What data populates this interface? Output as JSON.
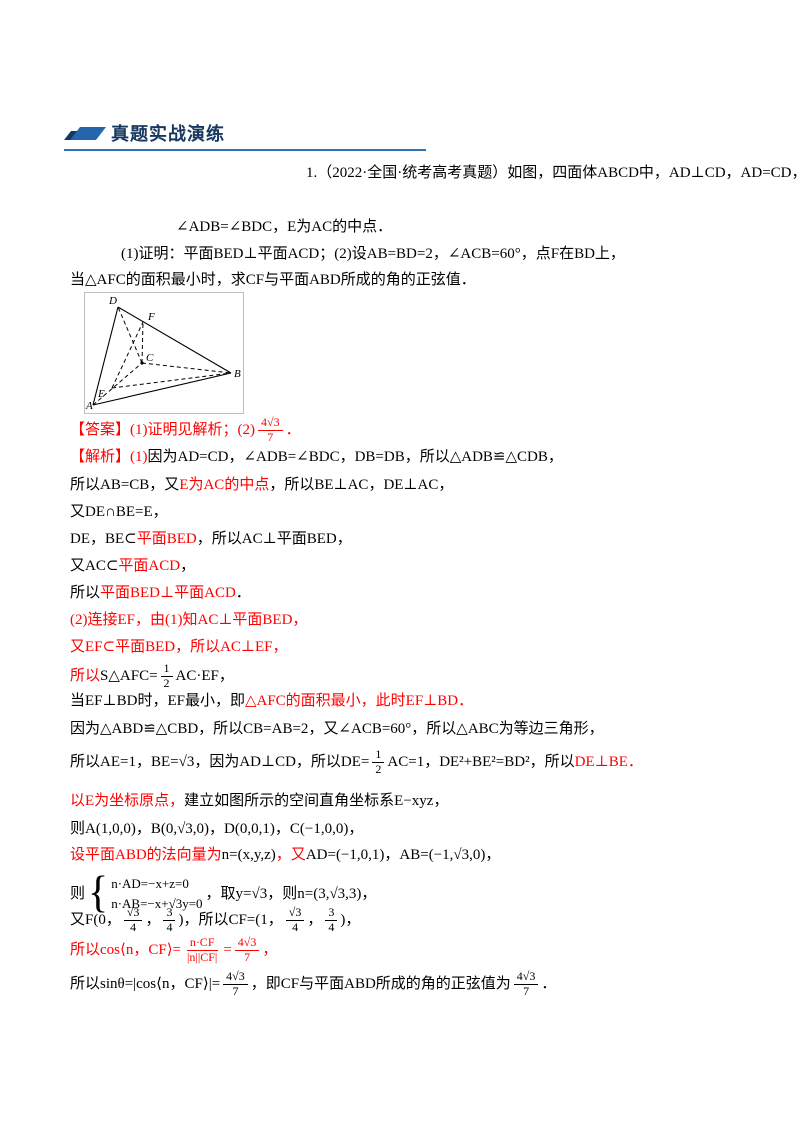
{
  "header": {
    "title": "真题实战演练"
  },
  "colors": {
    "accent": "#2e74b5",
    "title": "#17375e",
    "red": "#ff0000",
    "black": "#000000"
  },
  "problem": {
    "lines": [
      {
        "segments": [
          {
            "type": "text",
            "color": "black",
            "text": "1.（2022·全国·统考高考真题）如图，四面体ABCD中，AD⊥CD，AD=CD，"
          }
        ]
      },
      {
        "segments": [
          {
            "type": "text",
            "color": "black",
            "text": "∠ADB=∠BDC，E为AC的中点．"
          }
        ]
      },
      {
        "segments": [
          {
            "type": "text",
            "color": "black",
            "text": "(1)证明：平面BED⊥平面ACD；(2)设AB=BD=2，∠ACB=60°，点F在BD上，"
          }
        ]
      },
      {
        "segments": [
          {
            "type": "text",
            "color": "black",
            "text": "当△AFC的面积最小时，求CF与平面ABD所成的角的正弦值．"
          }
        ]
      }
    ]
  },
  "figure": {
    "labels": {
      "a": "A",
      "b": "B",
      "c": "C",
      "d": "D",
      "e": "E",
      "f": "F"
    }
  },
  "solution": {
    "lines": [
      {
        "segments": [
          {
            "type": "text",
            "color": "red",
            "text": "【答案】(1)证明见解析；(2)"
          },
          {
            "type": "frac",
            "color": "red",
            "num": "4√3",
            "den": "7"
          },
          {
            "type": "text",
            "color": "red",
            "text": "．"
          }
        ]
      },
      {
        "segments": [
          {
            "type": "text",
            "color": "red",
            "text": "【解析】(1)"
          },
          {
            "type": "text",
            "color": "black",
            "text": "因为AD=CD，∠ADB=∠BDC，DB=DB，所以△ADB≌△CDB，"
          }
        ]
      },
      {
        "segments": [
          {
            "type": "text",
            "color": "black",
            "text": "所以AB=CB，又"
          },
          {
            "type": "text",
            "color": "red",
            "text": "E为AC的中点"
          },
          {
            "type": "text",
            "color": "black",
            "text": "，所以BE⊥AC，DE⊥AC，"
          }
        ]
      },
      {
        "segments": [
          {
            "type": "text",
            "color": "black",
            "text": "又DE∩BE=E，"
          }
        ]
      },
      {
        "segments": [
          {
            "type": "text",
            "color": "black",
            "text": "DE，BE⊂"
          },
          {
            "type": "text",
            "color": "red",
            "text": "平面BED"
          },
          {
            "type": "text",
            "color": "black",
            "text": "，所以AC⊥平面BED，"
          }
        ]
      },
      {
        "segments": [
          {
            "type": "text",
            "color": "black",
            "text": "又AC⊂"
          },
          {
            "type": "text",
            "color": "red",
            "text": "平面ACD"
          },
          {
            "type": "text",
            "color": "black",
            "text": "，"
          }
        ]
      },
      {
        "segments": [
          {
            "type": "text",
            "color": "black",
            "text": "所以"
          },
          {
            "type": "text",
            "color": "red",
            "text": "平面BED⊥平面ACD"
          },
          {
            "type": "text",
            "color": "black",
            "text": "．"
          }
        ]
      },
      {
        "segments": [
          {
            "type": "text",
            "color": "red",
            "text": "(2)连接EF，由(1)知AC⊥平面BED，"
          }
        ]
      },
      {
        "segments": [
          {
            "type": "text",
            "color": "red",
            "text": "又EF⊂平面BED，所以AC⊥EF，"
          }
        ]
      },
      {
        "segments": [
          {
            "type": "text",
            "color": "red",
            "text": "所以"
          },
          {
            "type": "text",
            "color": "black",
            "text": "S△AFC="
          },
          {
            "type": "frac",
            "color": "black",
            "num": "1",
            "den": "2"
          },
          {
            "type": "text",
            "color": "black",
            "text": "AC·EF，"
          }
        ]
      },
      {
        "segments": [
          {
            "type": "text",
            "color": "black",
            "text": "当EF⊥BD时，EF最小，即"
          },
          {
            "type": "text",
            "color": "red",
            "text": "△AFC的面积最小，此时EF⊥BD．"
          }
        ]
      },
      {
        "segments": [
          {
            "type": "text",
            "color": "black",
            "text": "因为△ABD≌△CBD，所以CB=AB=2，又∠ACB=60°，所以△ABC为等边三角形，"
          }
        ]
      },
      {
        "segments": [
          {
            "type": "text",
            "color": "black",
            "text": "所以AE=1，BE=√3，因为AD⊥CD，所以DE="
          },
          {
            "type": "frac",
            "color": "black",
            "num": "1",
            "den": "2"
          },
          {
            "type": "text",
            "color": "black",
            "text": "AC=1，DE²+BE²=BD²，所以"
          },
          {
            "type": "text",
            "color": "red",
            "text": "DE⊥BE．"
          }
        ]
      },
      {
        "segments": [
          {
            "type": "text",
            "color": "red",
            "text": "以E为坐标原点，"
          },
          {
            "type": "text",
            "color": "black",
            "text": "建立如图所示的空间直角坐标系E−xyz，"
          }
        ]
      },
      {
        "segments": [
          {
            "type": "text",
            "color": "black",
            "text": "则A(1,0,0)，B(0,√3,0)，D(0,0,1)，C(−1,0,0)，"
          }
        ]
      },
      {
        "segments": [
          {
            "type": "text",
            "color": "red",
            "text": "设平面ABD的法向量为"
          },
          {
            "type": "text",
            "color": "black",
            "text": "n=(x,y,z)"
          },
          {
            "type": "text",
            "color": "red",
            "text": "，又"
          },
          {
            "type": "text",
            "color": "black",
            "text": "AD=(−1,0,1)，AB=(−1,√3,0)，"
          }
        ]
      },
      {
        "segments": [
          {
            "type": "text",
            "color": "black",
            "text": "则"
          },
          {
            "type": "cases",
            "color": "black",
            "rows": [
              "n·AD=−x+z=0",
              "n·AB=−x+√3y=0"
            ]
          },
          {
            "type": "text",
            "color": "black",
            "text": "，取y=√3，则n=(3,√3,3)，"
          }
        ]
      },
      {
        "segments": [
          {
            "type": "text",
            "color": "black",
            "text": "又F(0，"
          },
          {
            "type": "frac",
            "color": "black",
            "num": "√3",
            "den": "4"
          },
          {
            "type": "text",
            "color": "black",
            "text": "，"
          },
          {
            "type": "frac",
            "color": "black",
            "num": "3",
            "den": "4"
          },
          {
            "type": "text",
            "color": "black",
            "text": ")，所以CF=(1，"
          },
          {
            "type": "frac",
            "color": "black",
            "num": "√3",
            "den": "4"
          },
          {
            "type": "text",
            "color": "black",
            "text": "，"
          },
          {
            "type": "frac",
            "color": "black",
            "num": "3",
            "den": "4"
          },
          {
            "type": "text",
            "color": "black",
            "text": ")，"
          }
        ]
      },
      {
        "segments": [
          {
            "type": "text",
            "color": "red",
            "text": "所以cos⟨n，CF⟩="
          },
          {
            "type": "frac",
            "color": "red",
            "num": "n·CF",
            "den": "|n||CF|"
          },
          {
            "type": "text",
            "color": "red",
            "text": "="
          },
          {
            "type": "frac",
            "color": "red",
            "num": "4√3",
            "den": "7"
          },
          {
            "type": "text",
            "color": "red",
            "text": "，"
          }
        ]
      },
      {
        "segments": [
          {
            "type": "text",
            "color": "black",
            "text": "所以sinθ=|cos⟨n，CF⟩|="
          },
          {
            "type": "frac",
            "color": "black",
            "num": "4√3",
            "den": "7"
          },
          {
            "type": "text",
            "color": "black",
            "text": "，即CF与平面ABD所成的角的正弦值为"
          },
          {
            "type": "frac",
            "color": "black",
            "num": "4√3",
            "den": "7"
          },
          {
            "type": "text",
            "color": "black",
            "text": "．"
          }
        ]
      }
    ]
  }
}
